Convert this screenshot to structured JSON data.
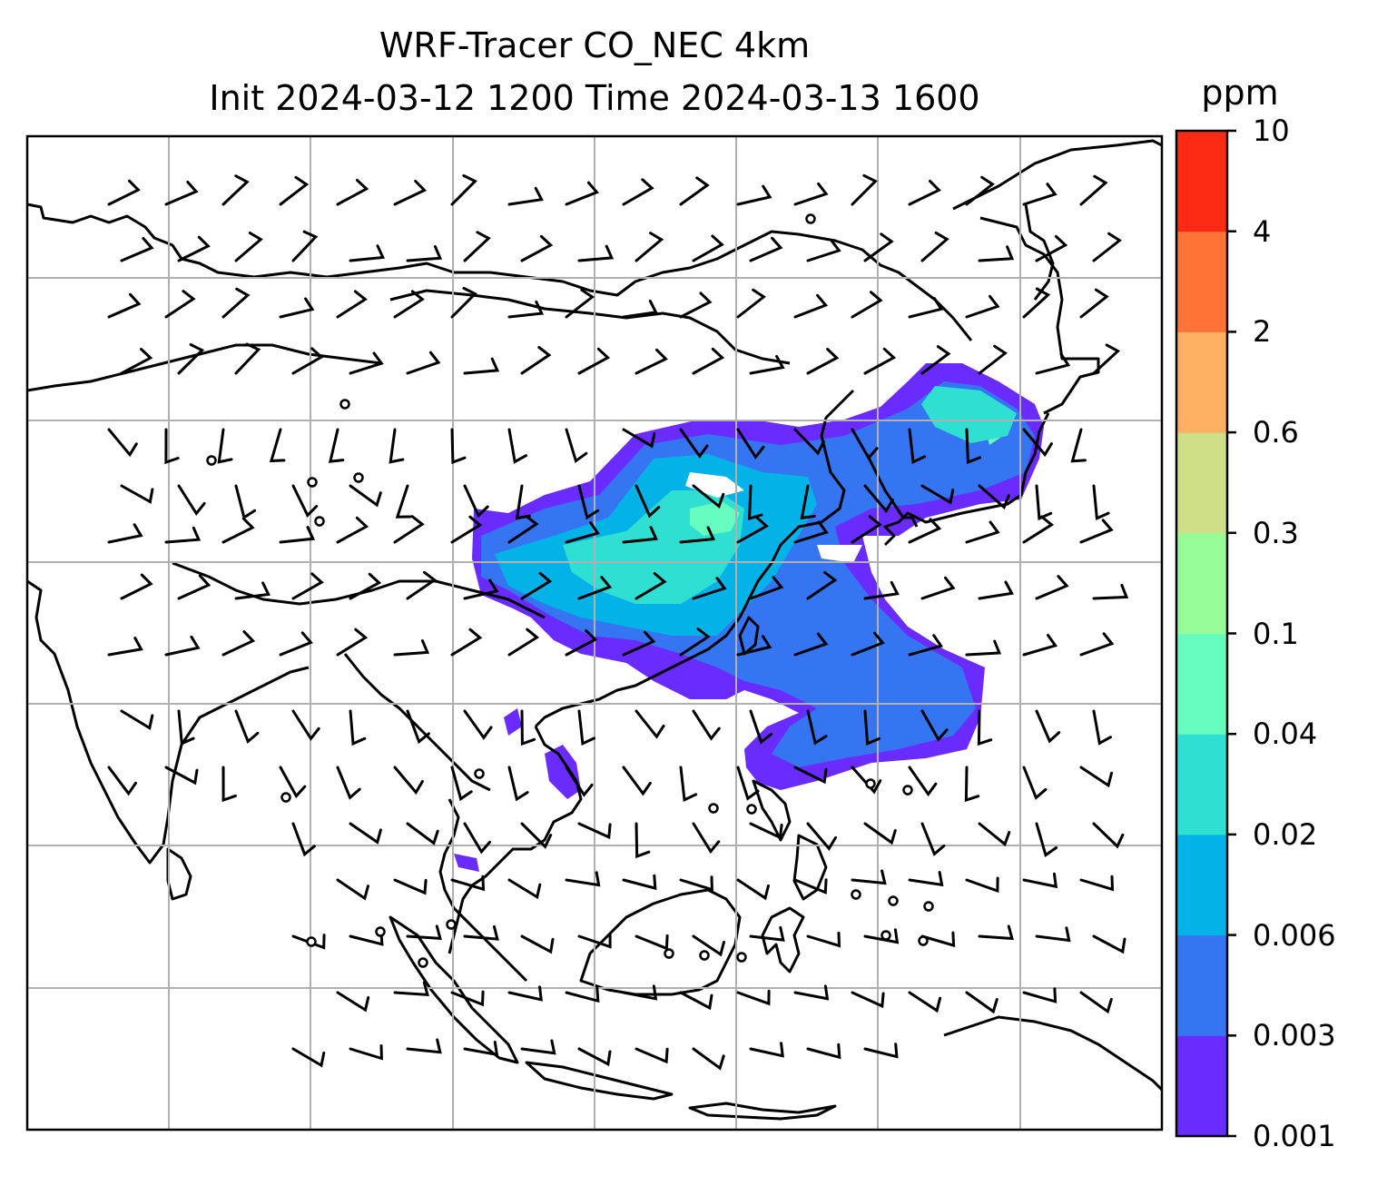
{
  "title": {
    "line1": "WRF-Tracer CO_NEC 4km",
    "line2": "Init 2024-03-12 1200 Time 2024-03-13 1600"
  },
  "colorbar": {
    "unit": "ppm",
    "levels": [
      "0.001",
      "0.003",
      "0.006",
      "0.02",
      "0.04",
      "0.1",
      "0.3",
      "0.6",
      "2",
      "4",
      "10"
    ],
    "colors": [
      "#6a2bff",
      "#3575f2",
      "#03b3e8",
      "#2fdfd1",
      "#66fbbf",
      "#97fb97",
      "#cfdf87",
      "#fdb062",
      "#ff7339",
      "#ff2a14"
    ]
  },
  "map": {
    "variable": "CO_NEC tracer concentration",
    "overlays": [
      "coastlines",
      "country-borders",
      "gridlines",
      "wind-barbs"
    ],
    "plume_color_ramp": "rainbow"
  }
}
